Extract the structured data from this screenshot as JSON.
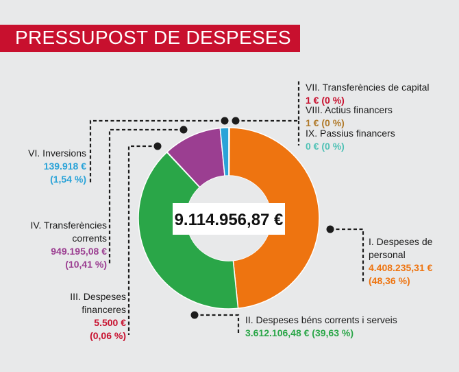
{
  "title": "PRESSUPOST DE DESPESES",
  "colors": {
    "banner": "#c8102e",
    "orange": "#ee7410",
    "green": "#2aa648",
    "purple": "#9b3e91",
    "blue": "#2aa3d8",
    "red": "#c8102e",
    "brown": "#b07a2a",
    "teal": "#4fc1b5",
    "line": "#1c1c1c"
  },
  "chart_data": {
    "type": "pie",
    "variant": "donut",
    "title": "PRESSUPOST DE DESPESES",
    "total_label": "9.114.956,87 €",
    "slices": [
      {
        "id": "I",
        "name": "I. Despeses de personal",
        "value": 4408235.31,
        "amount": "4.408.235,31 €",
        "pct": "(48,36 %)",
        "color": "#ee7410"
      },
      {
        "id": "II",
        "name": "II. Despeses béns corrents i serveis",
        "value": 3612106.48,
        "amount": "3.612.106,48 €",
        "pct": "(39,63 %)",
        "color": "#2aa648"
      },
      {
        "id": "III",
        "name": "III. Despeses financeres",
        "value": 5500,
        "amount": "5.500 €",
        "pct": "(0,06 %)",
        "color": "#c8102e"
      },
      {
        "id": "IV",
        "name": "IV. Transferències corrents",
        "value": 949195.08,
        "amount": "949.195,08 €",
        "pct": "(10,41 %)",
        "color": "#9b3e91"
      },
      {
        "id": "VI",
        "name": "VI. Inversions",
        "value": 139918,
        "amount": "139.918 €",
        "pct": "(1,54 %)",
        "color": "#2aa3d8"
      },
      {
        "id": "VII",
        "name": "VII. Transferències de capital",
        "value": 1,
        "amount": "1 €",
        "pct": "(0 %)",
        "color": "#c8102e"
      },
      {
        "id": "VIII",
        "name": "VIII. Actius financers",
        "value": 1,
        "amount": "1 €",
        "pct": "(0 %)",
        "color": "#b07a2a"
      },
      {
        "id": "IX",
        "name": "IX. Passius financers",
        "value": 0,
        "amount": "0 €",
        "pct": "(0 %)",
        "color": "#4fc1b5"
      }
    ]
  },
  "labels": {
    "vii": {
      "name": "VII. Transferències de capital",
      "value": "1 €  (0 %)"
    },
    "viii": {
      "name": "VIII. Actius financers",
      "value": "1 €  (0 %)"
    },
    "ix": {
      "name": "IX. Passius financers",
      "value": "0 €  (0 %)"
    },
    "vi": {
      "name": "VI. Inversions",
      "amount": "139.918 €",
      "pct": "(1,54 %)"
    },
    "iv": {
      "name1": "IV. Transferències",
      "name2": "corrents",
      "amount": "949.195,08 €",
      "pct": "(10,41 %)"
    },
    "iii": {
      "name1": "III. Despeses",
      "name2": "financeres",
      "amount": "5.500 €",
      "pct": "(0,06 %)"
    },
    "i": {
      "name1": "I. Despeses de",
      "name2": "personal",
      "amount": "4.408.235,31 €",
      "pct": "(48,36 %)"
    },
    "ii": {
      "name": "II. Despeses béns corrents i serveis",
      "value": "3.612.106,48 €  (39,63 %)"
    }
  }
}
